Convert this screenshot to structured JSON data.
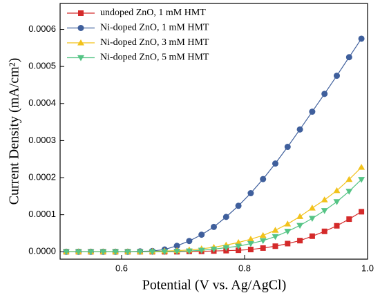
{
  "chart_data": {
    "type": "line",
    "xlabel": "Potential (V vs. Ag/AgCl)",
    "ylabel": "Current Density (mA/cm²)",
    "x": [
      0.51,
      0.53,
      0.55,
      0.57,
      0.59,
      0.61,
      0.63,
      0.65,
      0.67,
      0.69,
      0.71,
      0.73,
      0.75,
      0.77,
      0.79,
      0.81,
      0.83,
      0.85,
      0.87,
      0.89,
      0.91,
      0.93,
      0.95,
      0.97,
      0.99
    ],
    "series": [
      {
        "name": "undoped ZnO, 1 mM HMT",
        "color": "#d42a2a",
        "marker": "square",
        "values": [
          0,
          0,
          0,
          0,
          0,
          0,
          0,
          0,
          0,
          0,
          1e-06,
          1e-06,
          2e-06,
          3e-06,
          4e-06,
          6e-06,
          1e-05,
          1.5e-05,
          2.2e-05,
          3e-05,
          4.2e-05,
          5.5e-05,
          7e-05,
          8.8e-05,
          0.000108
        ]
      },
      {
        "name": "Ni-doped ZnO, 1 mM HMT",
        "color": "#3f5f9c",
        "marker": "circle",
        "values": [
          0,
          0,
          0,
          0,
          0,
          0,
          1e-06,
          2e-06,
          6e-06,
          1.6e-05,
          2.9e-05,
          4.6e-05,
          6.7e-05,
          9.4e-05,
          0.000124,
          0.000158,
          0.000196,
          0.000238,
          0.000283,
          0.00033,
          0.000378,
          0.000426,
          0.000475,
          0.000525,
          0.000575
        ]
      },
      {
        "name": "Ni-doped ZnO, 3 mM HMT",
        "color": "#f2c21b",
        "marker": "triangle-up",
        "values": [
          0,
          0,
          0,
          0,
          0,
          0,
          0,
          1e-06,
          2e-06,
          3e-06,
          5e-06,
          8e-06,
          1.2e-05,
          1.8e-05,
          2.5e-05,
          3.4e-05,
          4.4e-05,
          5.8e-05,
          7.5e-05,
          9.5e-05,
          0.000118,
          0.00014,
          0.000165,
          0.000195,
          0.000228
        ]
      },
      {
        "name": "Ni-doped ZnO, 5 mM HMT",
        "color": "#55c485",
        "marker": "triangle-down",
        "values": [
          0,
          0,
          0,
          0,
          0,
          0,
          0,
          0,
          0,
          1e-06,
          2e-06,
          4e-06,
          7e-06,
          1.1e-05,
          1.5e-05,
          2.2e-05,
          3e-05,
          4.1e-05,
          5.5e-05,
          7.1e-05,
          9e-05,
          0.000111,
          0.000135,
          0.000163,
          0.000195
        ]
      }
    ],
    "xlim": [
      0.5,
      1.0
    ],
    "xticks": [
      0.6,
      0.8,
      {
        "value": 1.0,
        "label": "1.0"
      }
    ],
    "ylim": [
      -2e-05,
      0.00067
    ],
    "yticks": [
      {
        "value": 0,
        "label": "0.0000"
      },
      {
        "value": 0.0001,
        "label": "0.0001"
      },
      {
        "value": 0.0002,
        "label": "0.0002"
      },
      {
        "value": 0.0003,
        "label": "0.0003"
      },
      {
        "value": 0.0004,
        "label": "0.0004"
      },
      {
        "value": 0.0005,
        "label": "0.0005"
      },
      {
        "value": 0.0006,
        "label": "0.0006"
      }
    ],
    "legend": "upper left"
  }
}
